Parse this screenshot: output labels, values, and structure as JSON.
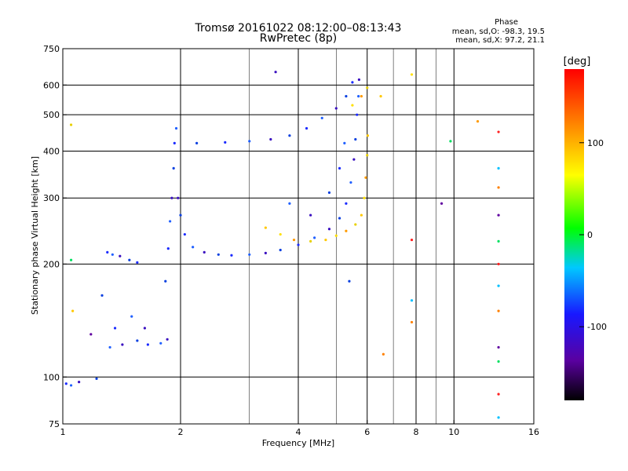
{
  "chart_data": {
    "type": "scatter",
    "title": "Tromsø 20161022 08:12:00–08:13:43",
    "subtitle": "RwPretec (8p)",
    "xlabel": "Frequency [MHz]",
    "ylabel": "Stationary phase Virtual Height [km]",
    "x_scale": "log",
    "y_scale": "log",
    "xlim": [
      1,
      16
    ],
    "ylim": [
      75,
      750
    ],
    "x_ticks": [
      1,
      2,
      4,
      6,
      8,
      10,
      16
    ],
    "x_major_ticks": [
      2,
      4,
      6,
      8,
      10
    ],
    "x_minor_ticks": [
      3,
      5,
      7,
      9
    ],
    "y_ticks": [
      75,
      100,
      200,
      300,
      400,
      500,
      600,
      750
    ],
    "y_grid": [
      100,
      200,
      300,
      400,
      500,
      600
    ],
    "grid": true,
    "colorbar": {
      "label": "[deg]",
      "ticks": [
        100,
        0,
        -100
      ],
      "range": [
        -180,
        180
      ]
    },
    "phase_stats": {
      "header": "Phase",
      "o_line": "mean, sd,O: -98.3, 19.5",
      "x_line": "mean, sd,X:  97.2, 21.1"
    },
    "series": [
      {
        "mode": "O",
        "phase_mean": -98.3,
        "phase_sd": 19.5,
        "points": [
          {
            "f": 1.02,
            "h": 96
          },
          {
            "f": 1.05,
            "h": 95
          },
          {
            "f": 1.1,
            "h": 97
          },
          {
            "f": 1.22,
            "h": 99
          },
          {
            "f": 1.3,
            "h": 215
          },
          {
            "f": 1.34,
            "h": 212
          },
          {
            "f": 1.4,
            "h": 210
          },
          {
            "f": 1.48,
            "h": 205
          },
          {
            "f": 1.55,
            "h": 202
          },
          {
            "f": 1.32,
            "h": 120
          },
          {
            "f": 1.42,
            "h": 122
          },
          {
            "f": 1.55,
            "h": 125
          },
          {
            "f": 1.65,
            "h": 122
          },
          {
            "f": 1.78,
            "h": 123
          },
          {
            "f": 1.85,
            "h": 126
          },
          {
            "f": 1.26,
            "h": 165
          },
          {
            "f": 1.36,
            "h": 135
          },
          {
            "f": 1.5,
            "h": 145
          },
          {
            "f": 1.62,
            "h": 135
          },
          {
            "f": 1.83,
            "h": 180
          },
          {
            "f": 1.86,
            "h": 220
          },
          {
            "f": 1.88,
            "h": 260
          },
          {
            "f": 1.9,
            "h": 300
          },
          {
            "f": 1.92,
            "h": 360
          },
          {
            "f": 1.93,
            "h": 420
          },
          {
            "f": 1.95,
            "h": 460
          },
          {
            "f": 1.97,
            "h": 300
          },
          {
            "f": 2.0,
            "h": 270
          },
          {
            "f": 2.05,
            "h": 240
          },
          {
            "f": 2.15,
            "h": 222
          },
          {
            "f": 2.3,
            "h": 215
          },
          {
            "f": 2.5,
            "h": 212
          },
          {
            "f": 2.7,
            "h": 211
          },
          {
            "f": 3.0,
            "h": 212
          },
          {
            "f": 3.3,
            "h": 214
          },
          {
            "f": 3.6,
            "h": 218
          },
          {
            "f": 4.0,
            "h": 225
          },
          {
            "f": 4.4,
            "h": 235
          },
          {
            "f": 4.8,
            "h": 248
          },
          {
            "f": 5.1,
            "h": 265
          },
          {
            "f": 5.3,
            "h": 290
          },
          {
            "f": 5.45,
            "h": 330
          },
          {
            "f": 5.55,
            "h": 380
          },
          {
            "f": 5.6,
            "h": 430
          },
          {
            "f": 5.65,
            "h": 500
          },
          {
            "f": 5.7,
            "h": 560
          },
          {
            "f": 5.72,
            "h": 620
          },
          {
            "f": 2.2,
            "h": 420
          },
          {
            "f": 2.6,
            "h": 422
          },
          {
            "f": 3.0,
            "h": 425
          },
          {
            "f": 3.4,
            "h": 430
          },
          {
            "f": 3.8,
            "h": 440
          },
          {
            "f": 4.2,
            "h": 460
          },
          {
            "f": 4.6,
            "h": 490
          },
          {
            "f": 5.0,
            "h": 520
          },
          {
            "f": 5.3,
            "h": 560
          },
          {
            "f": 5.5,
            "h": 610
          },
          {
            "f": 3.8,
            "h": 290
          },
          {
            "f": 4.3,
            "h": 270
          },
          {
            "f": 4.8,
            "h": 310
          },
          {
            "f": 5.1,
            "h": 360
          },
          {
            "f": 5.25,
            "h": 420
          },
          {
            "f": 3.5,
            "h": 650
          },
          {
            "f": 5.4,
            "h": 180
          }
        ]
      },
      {
        "mode": "X",
        "phase_mean": 97.2,
        "phase_sd": 21.1,
        "points": [
          {
            "f": 3.3,
            "h": 250
          },
          {
            "f": 3.6,
            "h": 240
          },
          {
            "f": 3.9,
            "h": 232
          },
          {
            "f": 4.3,
            "h": 230
          },
          {
            "f": 4.7,
            "h": 232
          },
          {
            "f": 5.0,
            "h": 238
          },
          {
            "f": 5.3,
            "h": 245
          },
          {
            "f": 5.6,
            "h": 255
          },
          {
            "f": 5.8,
            "h": 270
          },
          {
            "f": 5.9,
            "h": 300
          },
          {
            "f": 5.95,
            "h": 340
          },
          {
            "f": 6.0,
            "h": 390
          },
          {
            "f": 6.02,
            "h": 440
          },
          {
            "f": 5.5,
            "h": 530
          },
          {
            "f": 5.8,
            "h": 560
          },
          {
            "f": 6.0,
            "h": 590
          },
          {
            "f": 6.5,
            "h": 560
          },
          {
            "f": 7.8,
            "h": 640
          },
          {
            "f": 11.5,
            "h": 480
          },
          {
            "f": 1.05,
            "h": 470
          },
          {
            "f": 1.06,
            "h": 150
          }
        ]
      },
      {
        "mode": "scattered",
        "points": [
          {
            "f": 7.8,
            "h": 232
          },
          {
            "f": 7.8,
            "h": 160
          },
          {
            "f": 7.8,
            "h": 140
          },
          {
            "f": 9.3,
            "h": 290
          },
          {
            "f": 9.8,
            "h": 425
          },
          {
            "f": 13.0,
            "h": 450
          },
          {
            "f": 13.0,
            "h": 360
          },
          {
            "f": 13.0,
            "h": 320
          },
          {
            "f": 13.0,
            "h": 270
          },
          {
            "f": 13.0,
            "h": 230
          },
          {
            "f": 13.0,
            "h": 200
          },
          {
            "f": 13.0,
            "h": 175
          },
          {
            "f": 13.0,
            "h": 150
          },
          {
            "f": 13.0,
            "h": 120
          },
          {
            "f": 13.0,
            "h": 110
          },
          {
            "f": 13.0,
            "h": 90
          },
          {
            "f": 13.0,
            "h": 78
          },
          {
            "f": 6.6,
            "h": 115
          },
          {
            "f": 1.18,
            "h": 130
          },
          {
            "f": 1.05,
            "h": 205
          }
        ]
      }
    ]
  }
}
